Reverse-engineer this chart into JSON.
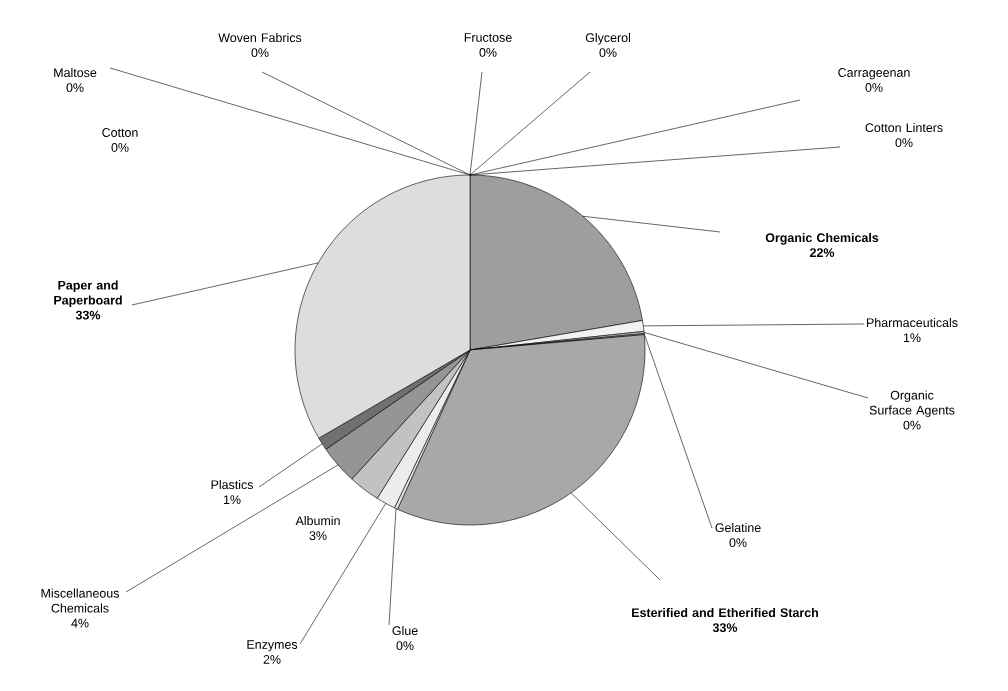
{
  "chart_data": {
    "type": "pie",
    "categories": [
      "Organic Chemicals",
      "Pharmaceuticals",
      "Organic Surface Agents",
      "Gelatine",
      "Esterified and Etherified Starch",
      "Glue",
      "Enzymes",
      "Albumin",
      "Miscellaneous Chemicals",
      "Plastics",
      "Paper and Paperboard",
      "Cotton",
      "Maltose",
      "Woven Fabrics",
      "Fructose",
      "Glycerol",
      "Carrageenan",
      "Cotton Linters"
    ],
    "values": [
      22.3,
      1.0,
      0.2,
      0.1,
      33.2,
      0.3,
      1.8,
      2.9,
      3.6,
      1.2,
      33.4,
      0,
      0,
      0,
      0,
      0,
      0,
      0
    ],
    "value_labels": [
      "22%",
      "1%",
      "0%",
      "0%",
      "33%",
      "0%",
      "2%",
      "3%",
      "4%",
      "1%",
      "33%",
      "0%",
      "0%",
      "0%",
      "0%",
      "0%",
      "0%",
      "0%"
    ],
    "colors": [
      "#9e9e9e",
      "#f2f2f2",
      "#bababa",
      "#d4d4d4",
      "#a8a8a8",
      "#e4e4e4",
      "#ececec",
      "#c2c2c2",
      "#959595",
      "#707070",
      "#dddddd",
      "#d8d8d8",
      "#cccccc",
      "#c8c8c8",
      "#b4b4b4",
      "#b0b0b0",
      "#8c8c8c",
      "#888888"
    ]
  }
}
